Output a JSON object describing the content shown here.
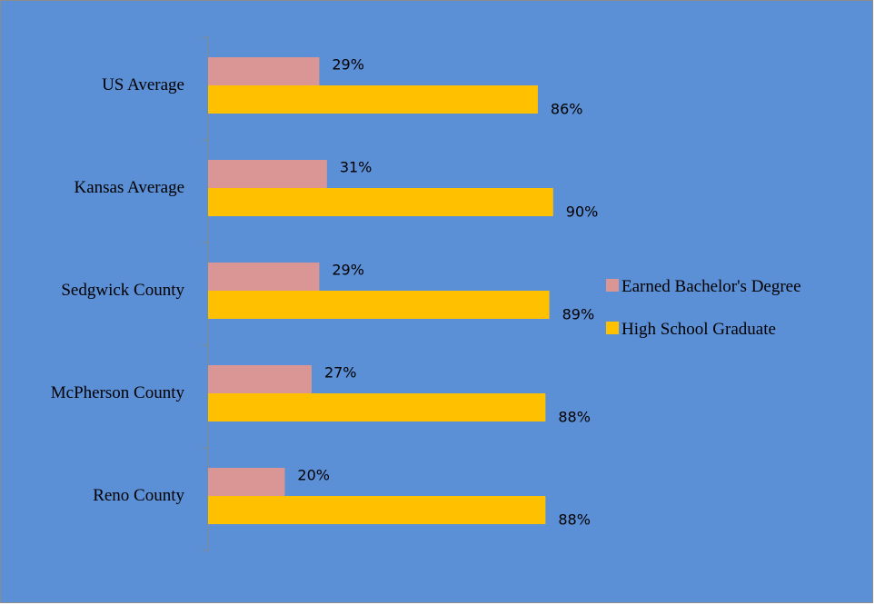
{
  "chart_data": {
    "type": "bar",
    "orientation": "horizontal",
    "categories": [
      "US Average",
      "Kansas Average",
      "Sedgwick County",
      "McPherson County",
      "Reno County"
    ],
    "series": [
      {
        "name": "Earned Bachelor's Degree",
        "values": [
          29,
          31,
          29,
          27,
          20
        ],
        "labels": [
          "29%",
          "31%",
          "29%",
          "27%",
          "20%"
        ],
        "color": "#d99694"
      },
      {
        "name": "High School Graduate",
        "values": [
          86,
          90,
          89,
          88,
          88
        ],
        "labels": [
          "86%",
          "90%",
          "89%",
          "88%",
          "88%"
        ],
        "color": "#ffc000"
      }
    ],
    "xlim": [
      0,
      100
    ],
    "grid": false,
    "legend_position": "right",
    "background_color": "#5b8fd6",
    "axis_color": "#8a8a8a"
  }
}
